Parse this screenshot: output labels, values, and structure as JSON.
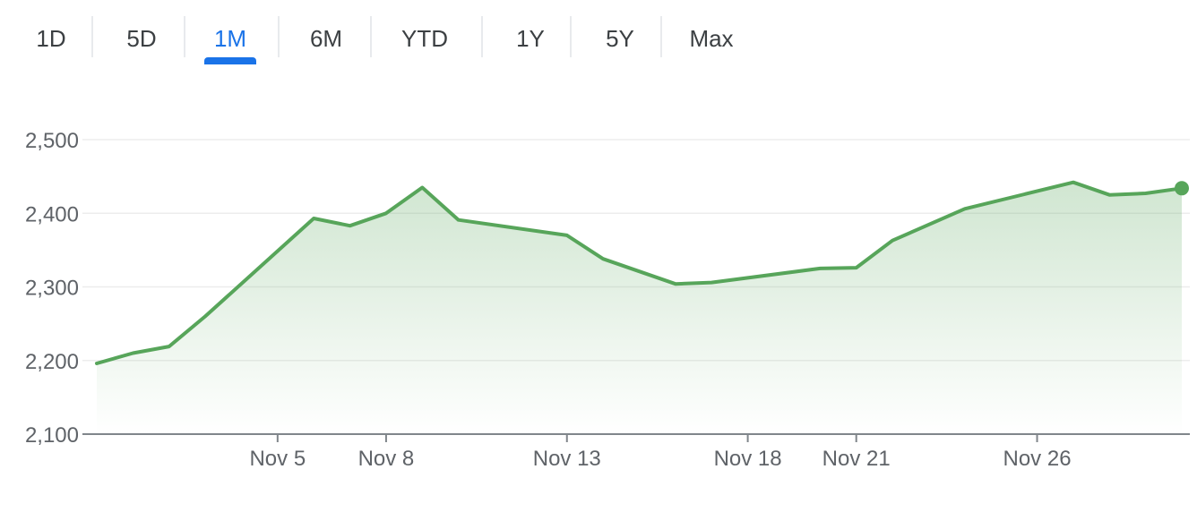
{
  "range_tabs": {
    "items": [
      {
        "label": "1D",
        "id": "1d",
        "active": false
      },
      {
        "label": "5D",
        "id": "5d",
        "active": false
      },
      {
        "label": "1M",
        "id": "1m",
        "active": true
      },
      {
        "label": "6M",
        "id": "6m",
        "active": false
      },
      {
        "label": "YTD",
        "id": "ytd",
        "active": false
      },
      {
        "label": "1Y",
        "id": "1y",
        "active": false
      },
      {
        "label": "5Y",
        "id": "5y",
        "active": false
      },
      {
        "label": "Max",
        "id": "max",
        "active": false
      }
    ],
    "active_color": "#1a73e8",
    "text_color": "#3c4043"
  },
  "chart_data": {
    "type": "area",
    "title": "",
    "xlabel": "",
    "ylabel": "",
    "ylim": [
      2100,
      2500
    ],
    "yticks": [
      2100,
      2200,
      2300,
      2400,
      2500
    ],
    "ytick_labels": [
      "2,100",
      "2,200",
      "2,300",
      "2,400",
      "2,500"
    ],
    "xticks": [
      "2023-11-05",
      "2023-11-08",
      "2023-11-13",
      "2023-11-18",
      "2023-11-21",
      "2023-11-26"
    ],
    "xtick_labels": [
      "Nov 5",
      "Nov 8",
      "Nov 13",
      "Nov 18",
      "Nov 21",
      "Nov 26"
    ],
    "grid": true,
    "line_color": "#57a55a",
    "fill_color": "#57a55a",
    "series": [
      {
        "x": [
          "2023-10-31",
          "2023-11-01",
          "2023-11-02",
          "2023-11-03",
          "2023-11-06",
          "2023-11-07",
          "2023-11-08",
          "2023-11-09",
          "2023-11-10",
          "2023-11-13",
          "2023-11-14",
          "2023-11-16",
          "2023-11-17",
          "2023-11-20",
          "2023-11-21",
          "2023-11-22",
          "2023-11-24",
          "2023-11-27",
          "2023-11-28",
          "2023-11-29",
          "2023-11-30"
        ],
        "values": [
          2196,
          2210,
          2219,
          2260,
          2393,
          2383,
          2400,
          2435,
          2391,
          2370,
          2338,
          2304,
          2306,
          2325,
          2326,
          2363,
          2406,
          2442,
          2425,
          2427,
          2434
        ]
      }
    ]
  }
}
